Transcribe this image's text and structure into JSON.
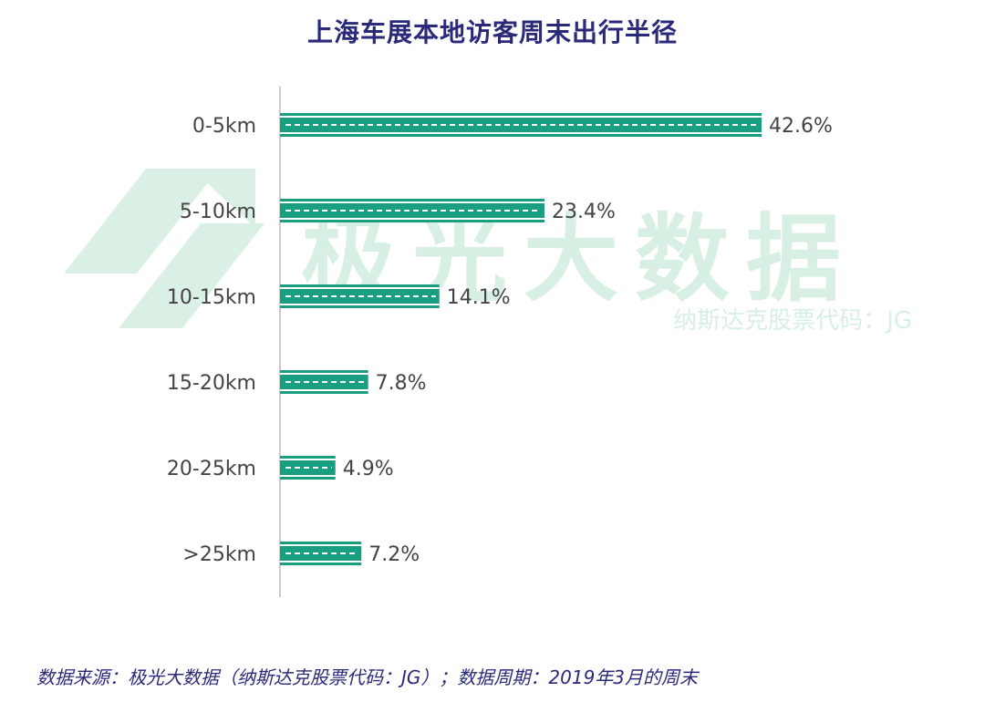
{
  "chart_data": {
    "type": "bar",
    "orientation": "horizontal",
    "title": "上海车展本地访客周末出行半径",
    "categories": [
      "0-5km",
      "5-10km",
      "10-15km",
      "15-20km",
      "20-25km",
      ">25km"
    ],
    "values": [
      42.6,
      23.4,
      14.1,
      7.8,
      4.9,
      7.2
    ],
    "value_labels": [
      "42.6%",
      "23.4%",
      "14.1%",
      "7.8%",
      "4.9%",
      "7.2%"
    ],
    "xlim": [
      0,
      42.6
    ],
    "xlabel": "",
    "ylabel": "",
    "grid": false,
    "legend": "none"
  },
  "watermark": {
    "brand": "极光大数据",
    "stock_code": "纳斯达克股票代码：JG"
  },
  "footer": {
    "source": "数据来源：极光大数据（纳斯达克股票代码：JG）；数据周期：2019年3月的周末"
  },
  "colors": {
    "bar": "#1a9e82",
    "bar_stripe": "#ffffff",
    "title": "#2b2a7a",
    "label": "#444444",
    "axis": "#bbbbbb",
    "watermark": "#d8efe3"
  }
}
